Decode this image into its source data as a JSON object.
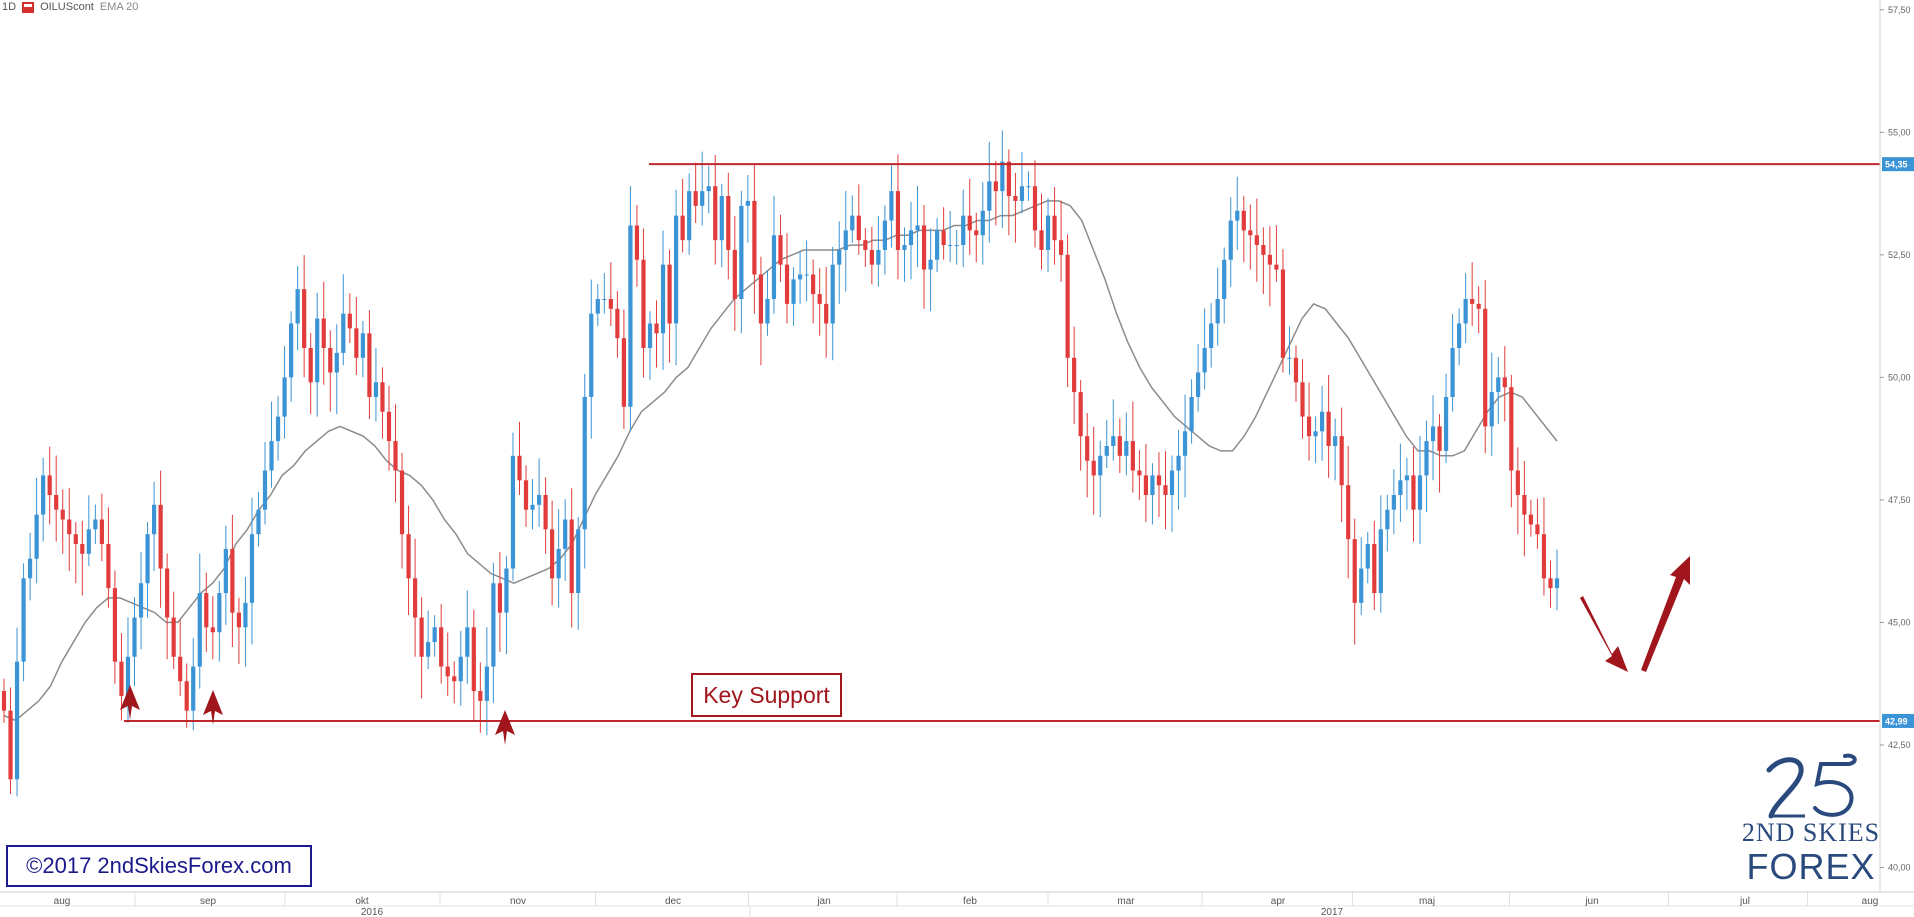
{
  "toolbar": {
    "interval": "1D",
    "symbol": "OILUScont",
    "indicator": "EMA 20"
  },
  "watermark": "©2017 2ndSkiesForex.com",
  "logo": {
    "line1": "2ND SKIES",
    "line2": "FOREX"
  },
  "annotation": {
    "key_support": "Key Support"
  },
  "chart_data": {
    "type": "candlestick",
    "symbol": "OILUScont",
    "interval": "1D",
    "indicator": "EMA 20",
    "ylim": [
      39.5,
      57.7
    ],
    "y_ticks": [
      "57,50",
      "55,00",
      "52,50",
      "50,00",
      "47,50",
      "45,00",
      "42,50",
      "40,00"
    ],
    "x_months": [
      "aug",
      "sep",
      "okt",
      "nov",
      "dec",
      "jan",
      "feb",
      "mar",
      "apr",
      "maj",
      "jun",
      "jul",
      "aug"
    ],
    "x_years": [
      "2016",
      "2017"
    ],
    "horizontal_lines": [
      {
        "label": "54,35",
        "value": 54.35,
        "color": "#c0272d"
      },
      {
        "label": "42,99",
        "value": 42.99,
        "color": "#c0272d"
      }
    ],
    "closes": [
      43.2,
      41.8,
      44.2,
      45.9,
      46.3,
      47.2,
      48.0,
      47.6,
      47.3,
      47.1,
      46.8,
      46.6,
      46.4,
      46.9,
      47.1,
      46.6,
      45.7,
      44.2,
      43.5,
      44.3,
      45.1,
      45.8,
      46.8,
      47.4,
      46.1,
      45.1,
      44.3,
      43.8,
      43.2,
      44.1,
      45.6,
      44.9,
      44.8,
      45.6,
      46.5,
      45.2,
      44.9,
      45.4,
      46.8,
      47.3,
      48.1,
      48.7,
      49.2,
      50.0,
      51.1,
      51.8,
      50.6,
      49.9,
      51.2,
      50.6,
      50.1,
      50.5,
      51.3,
      51.0,
      50.4,
      50.9,
      49.6,
      49.9,
      49.3,
      48.7,
      48.1,
      46.8,
      45.9,
      45.1,
      44.3,
      44.6,
      44.9,
      44.1,
      43.9,
      43.8,
      44.3,
      44.9,
      43.6,
      43.4,
      44.1,
      45.8,
      45.2,
      46.1,
      48.4,
      47.9,
      47.3,
      47.4,
      47.6,
      46.9,
      45.9,
      46.5,
      47.1,
      45.6,
      46.9,
      49.6,
      51.3,
      51.6,
      51.6,
      51.4,
      50.8,
      49.4,
      53.1,
      52.4,
      50.6,
      51.1,
      50.9,
      52.3,
      51.1,
      53.3,
      52.8,
      53.8,
      53.5,
      53.8,
      53.9,
      52.8,
      53.7,
      52.6,
      51.6,
      53.5,
      53.6,
      52.1,
      51.1,
      51.6,
      52.9,
      52.3,
      51.5,
      52.0,
      52.1,
      52.1,
      51.7,
      51.5,
      51.1,
      52.3,
      52.6,
      53.0,
      53.3,
      52.8,
      52.6,
      52.3,
      52.6,
      53.2,
      53.8,
      52.6,
      52.7,
      53.0,
      53.1,
      52.2,
      52.4,
      53.0,
      52.7,
      52.7,
      52.7,
      53.3,
      53.0,
      52.9,
      53.4,
      54.0,
      53.8,
      54.4,
      53.7,
      53.6,
      53.9,
      53.9,
      53.0,
      52.6,
      53.3,
      52.8,
      52.5,
      50.4,
      49.7,
      48.8,
      48.3,
      48.0,
      48.4,
      48.6,
      48.8,
      48.4,
      48.7,
      48.1,
      48.0,
      47.6,
      48.0,
      47.8,
      47.6,
      48.1,
      48.4,
      48.9,
      49.6,
      50.1,
      50.6,
      51.1,
      51.6,
      52.4,
      53.2,
      53.4,
      53.0,
      52.9,
      52.7,
      52.5,
      52.3,
      52.2,
      50.4,
      50.4,
      49.9,
      49.2,
      48.8,
      48.9,
      49.3,
      48.6,
      48.8,
      47.8,
      46.7,
      45.4,
      46.1,
      46.6,
      45.6,
      46.9,
      47.3,
      47.6,
      47.9,
      48.0,
      47.3,
      48.0,
      48.7,
      49.0,
      48.5,
      49.6,
      50.6,
      51.1,
      51.6,
      51.5,
      51.4,
      49.0,
      49.7,
      50.0,
      49.8,
      48.1,
      47.6,
      47.2,
      47.0,
      46.8,
      45.9,
      45.7,
      45.9
    ],
    "ema20": [
      43.1,
      43.0,
      43.2,
      43.4,
      43.7,
      44.2,
      44.6,
      45.0,
      45.3,
      45.5,
      45.5,
      45.4,
      45.3,
      45.2,
      45.0,
      45.0,
      45.3,
      45.6,
      45.8,
      46.1,
      46.6,
      46.9,
      47.3,
      47.6,
      48.0,
      48.2,
      48.5,
      48.7,
      48.9,
      49.0,
      48.9,
      48.8,
      48.6,
      48.3,
      48.1,
      48.0,
      47.8,
      47.5,
      47.1,
      46.8,
      46.4,
      46.2,
      46.0,
      45.9,
      45.8,
      45.9,
      46.0,
      46.1,
      46.3,
      46.6,
      47.1,
      47.6,
      48.0,
      48.4,
      48.9,
      49.3,
      49.5,
      49.7,
      50.0,
      50.2,
      50.6,
      51.0,
      51.3,
      51.6,
      51.8,
      52.0,
      52.2,
      52.4,
      52.5,
      52.6,
      52.6,
      52.6,
      52.6,
      52.7,
      52.7,
      52.8,
      52.8,
      52.9,
      52.9,
      53.0,
      53.0,
      53.0,
      53.1,
      53.1,
      53.2,
      53.2,
      53.3,
      53.3,
      53.4,
      53.5,
      53.6,
      53.6,
      53.5,
      53.2,
      52.6,
      52.0,
      51.3,
      50.7,
      50.2,
      49.8,
      49.5,
      49.2,
      49.0,
      48.8,
      48.6,
      48.5,
      48.5,
      48.8,
      49.2,
      49.7,
      50.2,
      50.7,
      51.2,
      51.5,
      51.4,
      51.1,
      50.8,
      50.4,
      50.0,
      49.6,
      49.2,
      48.8,
      48.5,
      48.5,
      48.4,
      48.4,
      48.5,
      48.9,
      49.3,
      49.6,
      49.7,
      49.6,
      49.3,
      49.0,
      48.7
    ],
    "support_arrows": [
      "aug",
      "sep",
      "nov"
    ],
    "projection": "down to 42,99 then up"
  }
}
